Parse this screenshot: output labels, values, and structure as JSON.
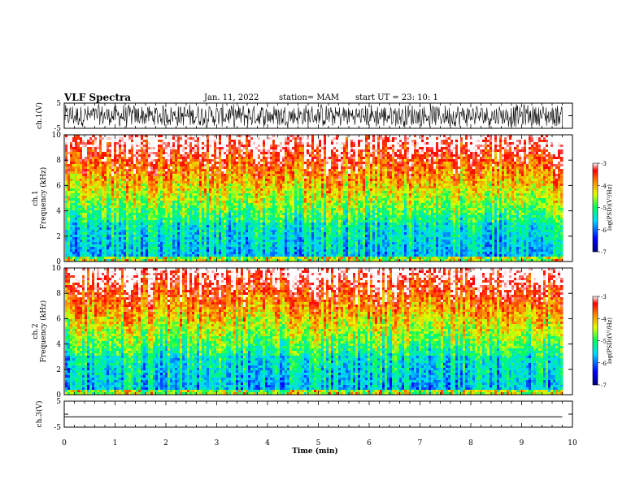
{
  "header": {
    "title": "VLF Spectra",
    "date": "Jan. 11, 2022",
    "station": "station= MAM",
    "start": "start UT =  23: 10: 1"
  },
  "chart_data": [
    {
      "type": "line",
      "ylabel": "ch.1(V)",
      "yticks": [
        5,
        0,
        -5
      ],
      "ytick_labels": [
        "5",
        "",
        "-5"
      ],
      "ylim": [
        -5,
        5
      ],
      "xlim": [
        0,
        10
      ],
      "description_series": "dense oscillating waveform"
    },
    {
      "type": "heatmap",
      "ylabel_line1": "ch.1",
      "ylabel_line2": "Frequency (kHz)",
      "yticks": [
        0,
        2,
        4,
        6,
        8,
        10
      ],
      "ylim": [
        0,
        10
      ],
      "xlim": [
        0,
        10
      ],
      "colorbar": {
        "label": "log(PSD)(V²/Hz)",
        "ticks": [
          -3,
          -4,
          -5,
          -6,
          -7
        ],
        "range": [
          -7,
          -3
        ]
      }
    },
    {
      "type": "heatmap",
      "ylabel_line1": "ch.2",
      "ylabel_line2": "Frequency (kHz)",
      "yticks": [
        0,
        2,
        4,
        6,
        8,
        10
      ],
      "ylim": [
        0,
        10
      ],
      "xlim": [
        0,
        10
      ],
      "colorbar": {
        "label": "log(PSD)(V²/Hz)",
        "ticks": [
          -3,
          -4,
          -5,
          -6,
          -7
        ],
        "range": [
          -7,
          -3
        ]
      }
    },
    {
      "type": "line",
      "ylabel": "ch.3(V)",
      "yticks": [
        5,
        0,
        -5
      ],
      "ytick_labels": [
        "5",
        "",
        "-5"
      ],
      "ylim": [
        -5,
        5
      ],
      "xlim": [
        0,
        10
      ],
      "series": [
        {
          "x": [
            0,
            9.8
          ],
          "y": [
            -1,
            -1
          ]
        }
      ],
      "xlabel": "Time (min)",
      "xticks": [
        0,
        1,
        2,
        3,
        4,
        5,
        6,
        7,
        8,
        9,
        10
      ]
    }
  ]
}
